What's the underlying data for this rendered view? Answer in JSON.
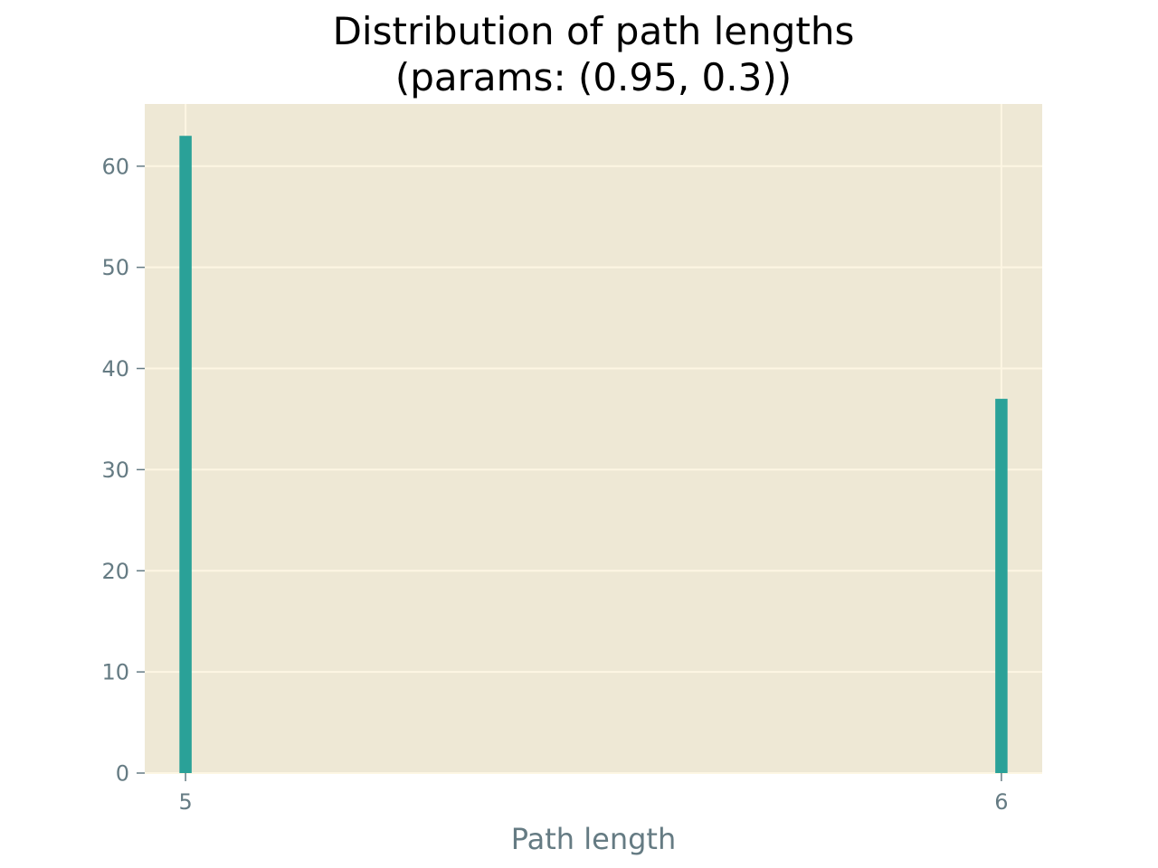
{
  "chart_data": {
    "type": "bar",
    "title_lines": [
      "Distribution of path lengths",
      "(params: (0.95, 0.3))"
    ],
    "xlabel": "Path length",
    "ylabel": "",
    "categories": [
      "5",
      "6"
    ],
    "x": [
      5,
      6
    ],
    "values": [
      63,
      37
    ],
    "xlim": [
      4.95,
      6.05
    ],
    "ylim": [
      0,
      66.15
    ],
    "x_ticks": [
      5,
      6
    ],
    "y_ticks": [
      0,
      10,
      20,
      30,
      40,
      50,
      60
    ],
    "grid": true,
    "legend": "none"
  },
  "colors": {
    "bar": "#2aa198",
    "plot_background": "#eee8d5",
    "grid": "#fdf6e3",
    "tick": "#657b83",
    "title": "#000000"
  }
}
